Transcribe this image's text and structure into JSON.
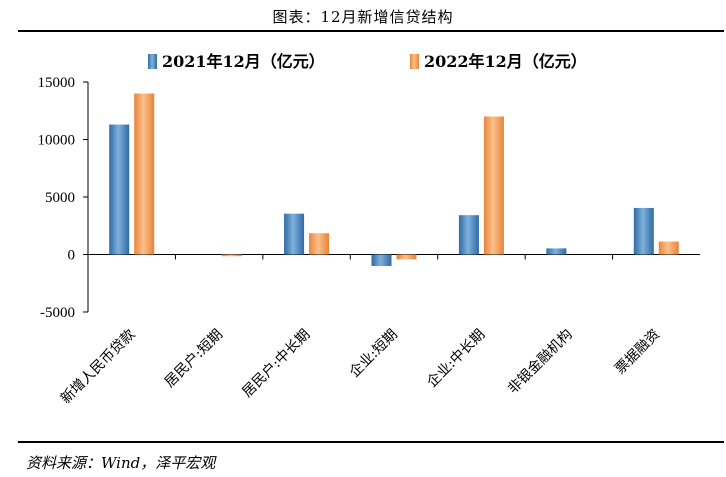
{
  "title": "图表：12月新增信贷结构",
  "source": "资料来源：Wind，泽平宏观",
  "colors": {
    "series1_light": "#7fb1db",
    "series1_dark": "#2e6ba7",
    "series2_light": "#fbc08a",
    "series2_dark": "#e8843a"
  },
  "chart_data": {
    "type": "bar",
    "title": "图表：12月新增信贷结构",
    "xlabel": "",
    "ylabel": "",
    "ylim": [
      -5000,
      15000
    ],
    "yticks": [
      15000,
      10000,
      5000,
      0,
      -5000
    ],
    "grid": false,
    "legend_position": "top",
    "categories": [
      "新增人民币贷款",
      "居民户:短期",
      "居民户:中长期",
      "企业:短期",
      "企业:中长期",
      "非银金融机构",
      "票据融资"
    ],
    "series": [
      {
        "name": "2021年12月（亿元）",
        "values": [
          11300,
          0,
          3550,
          -1000,
          3420,
          530,
          4050
        ]
      },
      {
        "name": "2022年12月（亿元）",
        "values": [
          14000,
          -150,
          1850,
          -420,
          12000,
          0,
          1120
        ]
      }
    ]
  }
}
